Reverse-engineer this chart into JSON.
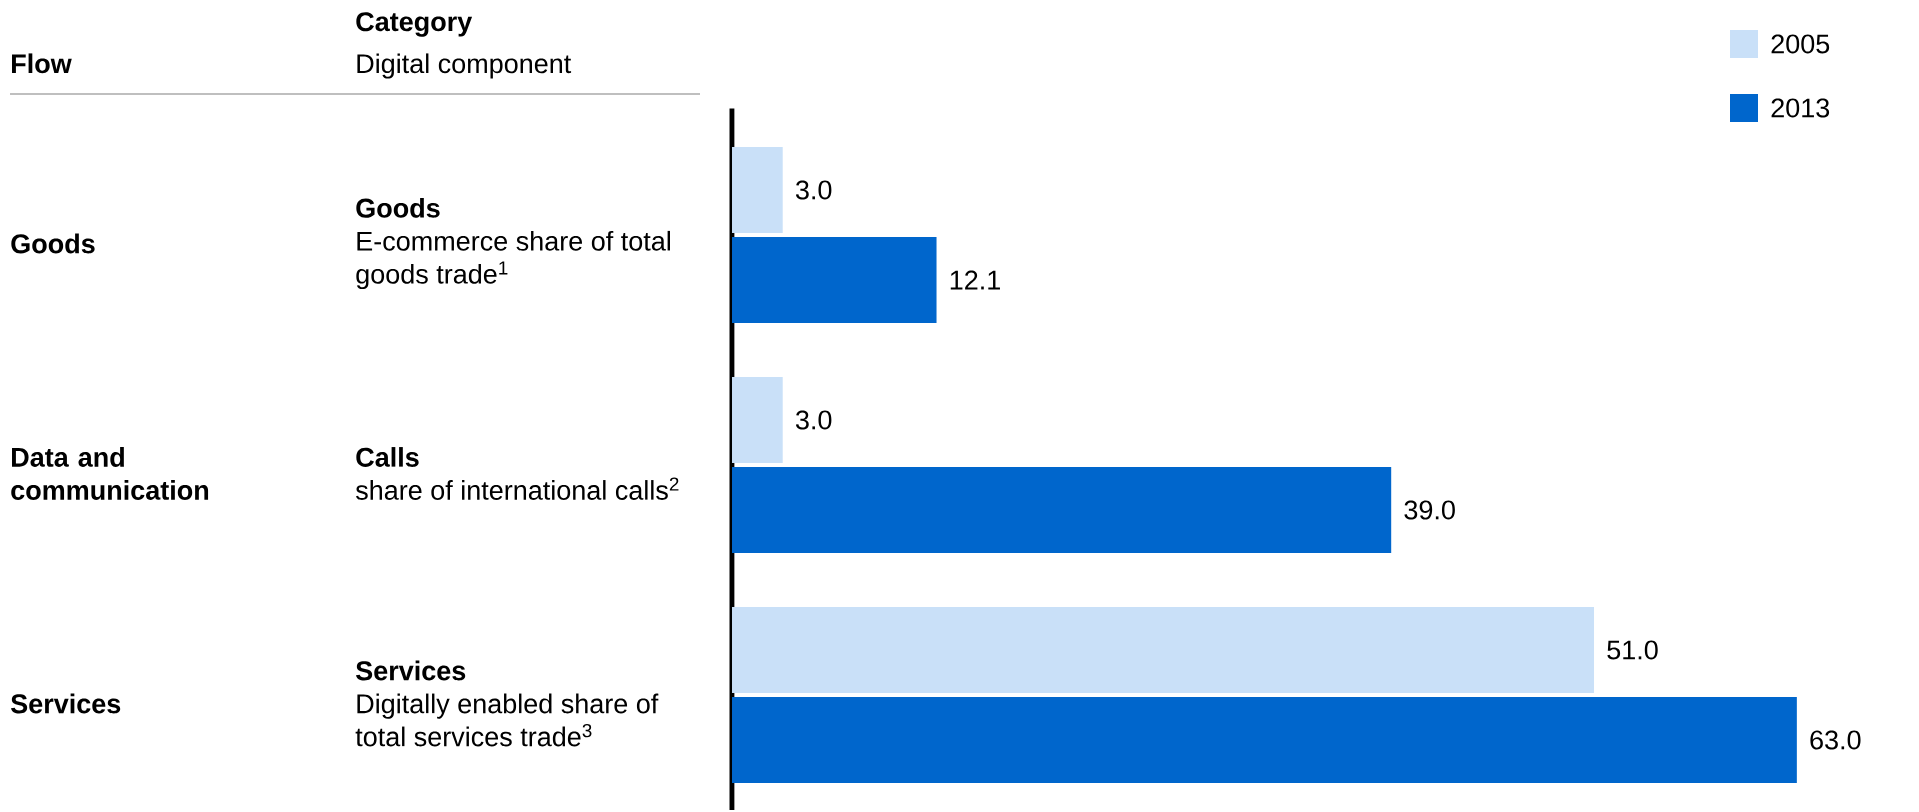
{
  "chart_data": {
    "type": "bar",
    "orientation": "horizontal",
    "categories": [
      "Goods",
      "Calls",
      "Services"
    ],
    "series": [
      {
        "name": "2005",
        "color": "#c9e0f8",
        "values": [
          3.0,
          3.0,
          51.0
        ],
        "value_labels": [
          "3.0",
          "3.0",
          "51.0"
        ]
      },
      {
        "name": "2013",
        "color": "#0066cc",
        "values": [
          12.1,
          39.0,
          63.0
        ],
        "value_labels": [
          "12.1",
          "39.0",
          "63.0"
        ]
      }
    ],
    "legend": "top right",
    "annotations": [
      "Flow",
      "Category",
      "Digital component",
      "Goods",
      "E-commerce share of total goods trade$^{1}$",
      "Data and communication",
      "share of international calls$^{2}$",
      "Services",
      "Digitally enabled share of total services trade$^{3}$"
    ]
  }
}
